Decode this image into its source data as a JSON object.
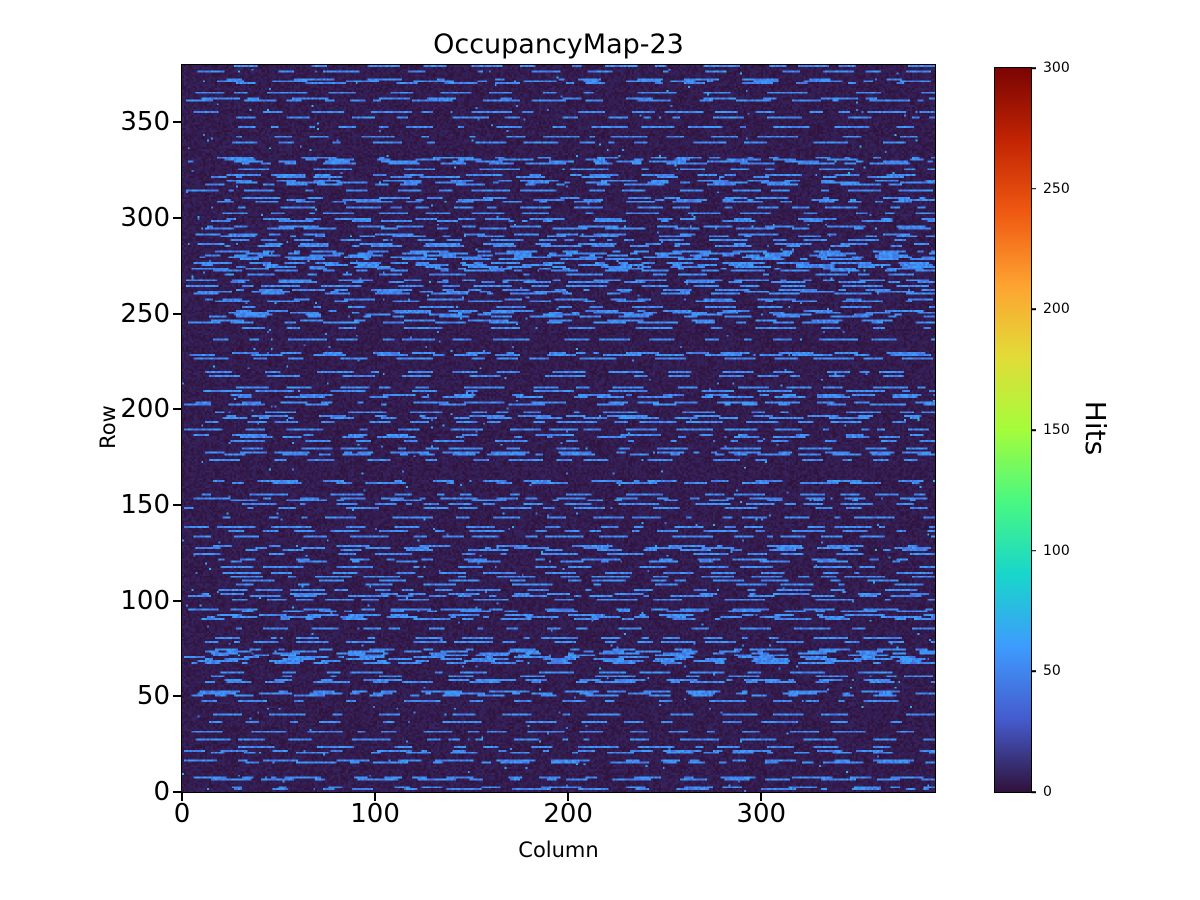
{
  "chart_data": {
    "type": "heatmap",
    "title": "OccupancyMap-23",
    "xlabel": "Column",
    "ylabel": "Row",
    "x_range": [
      0,
      390
    ],
    "y_range": [
      0,
      380
    ],
    "x_ticks": [
      0,
      100,
      200,
      300
    ],
    "y_ticks": [
      0,
      50,
      100,
      150,
      200,
      250,
      300,
      350
    ],
    "grid": false,
    "legend": "none",
    "colorbar": {
      "label": "Hits",
      "ticks": [
        0,
        50,
        100,
        150,
        200,
        250,
        300
      ],
      "vmin": 0,
      "vmax": 300,
      "position": "right"
    },
    "colormap": {
      "name": "turbo",
      "stops": [
        [
          48,
          18,
          59
        ],
        [
          69,
          91,
          205
        ],
        [
          62,
          155,
          254
        ],
        [
          24,
          214,
          203
        ],
        [
          72,
          248,
          130
        ],
        [
          164,
          252,
          59
        ],
        [
          226,
          220,
          56
        ],
        [
          254,
          163,
          49
        ],
        [
          239,
          89,
          17
        ],
        [
          194,
          36,
          3
        ],
        [
          122,
          4,
          3
        ]
      ]
    },
    "heatmap_params": {
      "ncols": 390,
      "nrows": 380,
      "seed": 23,
      "background_max": 8,
      "speckle_probability": 0.004,
      "speckle_min": 35,
      "speckle_max": 80,
      "streak_row_probability": 0.38,
      "streak_value_mean": 52,
      "streak_value_spread": 14,
      "dash_min": 3,
      "dash_max": 22,
      "gap_min": 4,
      "gap_max": 34
    },
    "description": "Pixel-detector style occupancy map: mostly near-zero hits (dark purple background) with horizontal dashed streaks of roughly 40-65 hit pixels (light blue) on randomly selected rows; no cells reach the upper (green/yellow/red) part of the 0-300 turbo color scale."
  }
}
